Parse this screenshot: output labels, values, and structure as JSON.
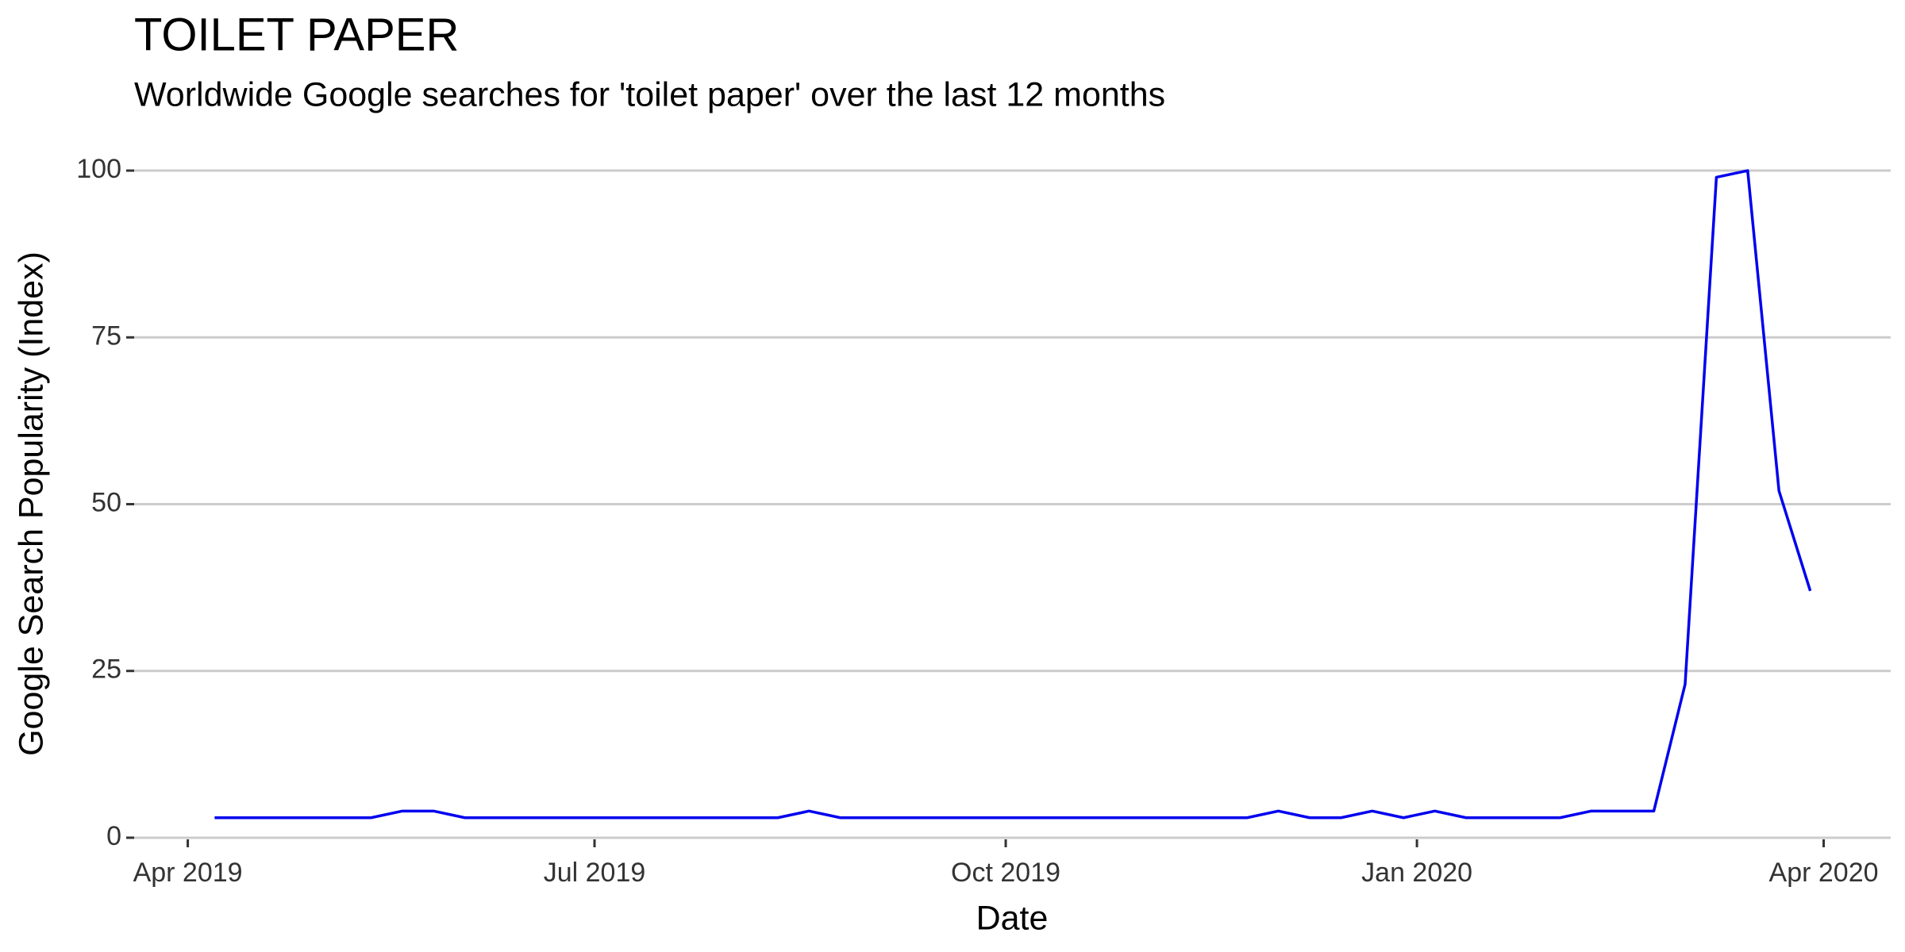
{
  "chart_data": {
    "type": "line",
    "title": "TOILET PAPER",
    "subtitle": "Worldwide Google searches for 'toilet paper' over the last 12 months",
    "xlabel": "Date",
    "ylabel": "Google Search Popularity (Index)",
    "x": [
      "2019-04-07",
      "2019-04-14",
      "2019-04-21",
      "2019-04-28",
      "2019-05-05",
      "2019-05-12",
      "2019-05-19",
      "2019-05-26",
      "2019-06-02",
      "2019-06-09",
      "2019-06-16",
      "2019-06-23",
      "2019-06-30",
      "2019-07-07",
      "2019-07-14",
      "2019-07-21",
      "2019-07-28",
      "2019-08-04",
      "2019-08-11",
      "2019-08-18",
      "2019-08-25",
      "2019-09-01",
      "2019-09-08",
      "2019-09-15",
      "2019-09-22",
      "2019-09-29",
      "2019-10-06",
      "2019-10-13",
      "2019-10-20",
      "2019-10-27",
      "2019-11-03",
      "2019-11-10",
      "2019-11-17",
      "2019-11-24",
      "2019-12-01",
      "2019-12-08",
      "2019-12-15",
      "2019-12-22",
      "2019-12-29",
      "2020-01-05",
      "2020-01-12",
      "2020-01-19",
      "2020-01-26",
      "2020-02-02",
      "2020-02-09",
      "2020-02-16",
      "2020-02-23",
      "2020-03-01",
      "2020-03-08",
      "2020-03-15",
      "2020-03-22",
      "2020-03-29"
    ],
    "series": [
      {
        "name": "toilet paper",
        "color": "#0000ee",
        "values": [
          3,
          3,
          3,
          3,
          3,
          3,
          4,
          4,
          3,
          3,
          3,
          3,
          3,
          3,
          3,
          3,
          3,
          3,
          3,
          4,
          3,
          3,
          3,
          3,
          3,
          3,
          3,
          3,
          3,
          3,
          3,
          3,
          3,
          3,
          4,
          3,
          3,
          4,
          3,
          4,
          3,
          3,
          3,
          3,
          4,
          4,
          4,
          23,
          99,
          100,
          52,
          37
        ]
      }
    ],
    "xlim": [
      "2019-03-20",
      "2020-04-16"
    ],
    "xticks": [
      {
        "value": "2019-04-01",
        "label": "Apr 2019"
      },
      {
        "value": "2019-07-01",
        "label": "Jul 2019"
      },
      {
        "value": "2019-10-01",
        "label": "Oct 2019"
      },
      {
        "value": "2020-01-01",
        "label": "Jan 2020"
      },
      {
        "value": "2020-04-01",
        "label": "Apr 2020"
      }
    ],
    "ylim": [
      -5,
      105
    ],
    "yticks": [
      0,
      25,
      50,
      75,
      100
    ],
    "grid": true
  }
}
